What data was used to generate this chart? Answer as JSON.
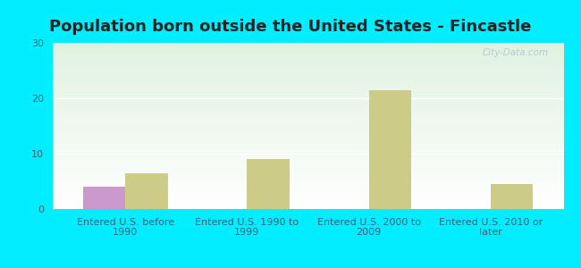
{
  "title": "Population born outside the United States - Fincastle",
  "categories": [
    "Entered U.S. before\n1990",
    "Entered U.S. 1990 to\n1999",
    "Entered U.S. 2000 to\n2009",
    "Entered U.S. 2010 or\nlater"
  ],
  "native_values": [
    4,
    0,
    0,
    0
  ],
  "foreign_values": [
    6.5,
    9,
    21.5,
    4.5
  ],
  "native_color": "#cc99cc",
  "foreign_color": "#cccc88",
  "ylim": [
    0,
    30
  ],
  "yticks": [
    0,
    10,
    20,
    30
  ],
  "background_outer": "#00eeff",
  "bar_width": 0.35,
  "title_fontsize": 13,
  "tick_label_fontsize": 8,
  "legend_fontsize": 9,
  "tick_color": "#336677",
  "title_color": "#222222",
  "watermark": "City-Data.com"
}
